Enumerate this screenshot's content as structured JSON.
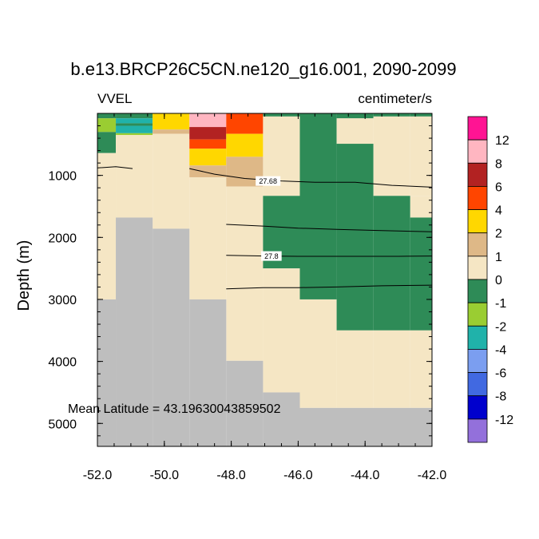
{
  "chart_data": {
    "type": "heatmap",
    "title": "b.e13.BRCP26C5CN.ne120_g16.001, 2090-2099",
    "left_string": "VVEL",
    "right_string": "centimeter/s",
    "xlabel": "",
    "ylabel": "Depth (m)",
    "xlim": [
      -52.0,
      -42.0
    ],
    "ylim": [
      0,
      5370
    ],
    "y_reversed": true,
    "x_ticks": [
      -52.0,
      -50.0,
      -48.0,
      -46.0,
      -44.0,
      -42.0
    ],
    "x_tick_labels": [
      "-52.0",
      "-50.0",
      "-48.0",
      "-46.0",
      "-44.0",
      "-42.0"
    ],
    "y_ticks": [
      1000,
      2000,
      3000,
      4000,
      5000
    ],
    "y_tick_labels": [
      "1000",
      "2000",
      "3000",
      "4000",
      "5000"
    ],
    "annotation": "Mean Latitude = 43.19630043859502",
    "missing_color": "#bebebe",
    "colorbar": {
      "labels": [
        "12",
        "8",
        "6",
        "4",
        "2",
        "1",
        "0",
        "-1",
        "-2",
        "-4",
        "-6",
        "-8",
        "-12"
      ],
      "colors_top_to_bottom": [
        "#ff1493",
        "#ffb6c1",
        "#b22222",
        "#ff4500",
        "#ffd700",
        "#deb887",
        "#f5e6c4",
        "#2e8b57",
        "#9acd32",
        "#20b2aa",
        "#7b9ef0",
        "#4169e1",
        "#0000cd",
        "#9370db"
      ]
    },
    "cells": [
      {
        "x0": -52.0,
        "x1": -51.45,
        "y0": 0,
        "y1": 80,
        "value": "0"
      },
      {
        "x0": -52.0,
        "x1": -51.45,
        "y0": 80,
        "y1": 300,
        "value": "-1"
      },
      {
        "x0": -52.0,
        "x1": -51.45,
        "y0": 300,
        "y1": 640,
        "value": "0"
      },
      {
        "x0": -52.0,
        "x1": -51.45,
        "y0": 640,
        "y1": 3000,
        "value": "1"
      },
      {
        "x0": -51.45,
        "x1": -50.35,
        "y0": 0,
        "y1": 80,
        "value": "0"
      },
      {
        "x0": -51.45,
        "x1": -50.35,
        "y0": 80,
        "y1": 160,
        "value": "-2"
      },
      {
        "x0": -51.45,
        "x1": -50.35,
        "y0": 160,
        "y1": 200,
        "value": "0"
      },
      {
        "x0": -51.45,
        "x1": -50.35,
        "y0": 200,
        "y1": 320,
        "value": "-2"
      },
      {
        "x0": -51.45,
        "x1": -50.35,
        "y0": 320,
        "y1": 350,
        "value": "-1"
      },
      {
        "x0": -51.45,
        "x1": -50.35,
        "y0": 350,
        "y1": 1680,
        "value": "1"
      },
      {
        "x0": -50.35,
        "x1": -49.25,
        "y0": 0,
        "y1": 260,
        "value": "4"
      },
      {
        "x0": -50.35,
        "x1": -49.25,
        "y0": 260,
        "y1": 330,
        "value": "2"
      },
      {
        "x0": -50.35,
        "x1": -49.25,
        "y0": 330,
        "y1": 1860,
        "value": "1"
      },
      {
        "x0": -49.25,
        "x1": -48.15,
        "y0": 0,
        "y1": 220,
        "value": "12"
      },
      {
        "x0": -49.25,
        "x1": -48.15,
        "y0": 220,
        "y1": 420,
        "value": "8"
      },
      {
        "x0": -49.25,
        "x1": -48.15,
        "y0": 420,
        "y1": 570,
        "value": "6"
      },
      {
        "x0": -49.25,
        "x1": -48.15,
        "y0": 570,
        "y1": 840,
        "value": "4"
      },
      {
        "x0": -49.25,
        "x1": -48.15,
        "y0": 840,
        "y1": 1030,
        "value": "2"
      },
      {
        "x0": -49.25,
        "x1": -48.15,
        "y0": 1030,
        "y1": 3000,
        "value": "1"
      },
      {
        "x0": -48.15,
        "x1": -47.05,
        "y0": 0,
        "y1": 330,
        "value": "6"
      },
      {
        "x0": -48.15,
        "x1": -47.05,
        "y0": 330,
        "y1": 700,
        "value": "4"
      },
      {
        "x0": -48.15,
        "x1": -47.05,
        "y0": 700,
        "y1": 1180,
        "value": "2"
      },
      {
        "x0": -48.15,
        "x1": -47.05,
        "y0": 1180,
        "y1": 3990,
        "value": "1"
      },
      {
        "x0": -47.05,
        "x1": -45.95,
        "y0": 0,
        "y1": 50,
        "value": "0"
      },
      {
        "x0": -47.05,
        "x1": -45.95,
        "y0": 50,
        "y1": 1330,
        "value": "1"
      },
      {
        "x0": -47.05,
        "x1": -45.95,
        "y0": 1330,
        "y1": 2500,
        "value": "0"
      },
      {
        "x0": -47.05,
        "x1": -45.95,
        "y0": 2500,
        "y1": 4500,
        "value": "1"
      },
      {
        "x0": -45.95,
        "x1": -44.85,
        "y0": 0,
        "y1": 3000,
        "value": "0"
      },
      {
        "x0": -45.95,
        "x1": -44.85,
        "y0": 3000,
        "y1": 4750,
        "value": "1"
      },
      {
        "x0": -44.85,
        "x1": -43.75,
        "y0": 0,
        "y1": 80,
        "value": "0"
      },
      {
        "x0": -44.85,
        "x1": -43.75,
        "y0": 80,
        "y1": 490,
        "value": "1"
      },
      {
        "x0": -44.85,
        "x1": -43.75,
        "y0": 490,
        "y1": 3500,
        "value": "0"
      },
      {
        "x0": -44.85,
        "x1": -43.75,
        "y0": 3500,
        "y1": 4750,
        "value": "1"
      },
      {
        "x0": -43.75,
        "x1": -42.65,
        "y0": 0,
        "y1": 50,
        "value": "0"
      },
      {
        "x0": -43.75,
        "x1": -42.65,
        "y0": 50,
        "y1": 1330,
        "value": "1"
      },
      {
        "x0": -43.75,
        "x1": -42.65,
        "y0": 1330,
        "y1": 3500,
        "value": "0"
      },
      {
        "x0": -43.75,
        "x1": -42.65,
        "y0": 3500,
        "y1": 4750,
        "value": "1"
      },
      {
        "x0": -42.65,
        "x1": -42.0,
        "y0": 0,
        "y1": 50,
        "value": "0"
      },
      {
        "x0": -42.65,
        "x1": -42.0,
        "y0": 50,
        "y1": 1330,
        "value": "1"
      },
      {
        "x0": -42.65,
        "x1": -42.0,
        "y0": 1330,
        "y1": 1680,
        "value": "1"
      },
      {
        "x0": -42.65,
        "x1": -42.0,
        "y0": 1680,
        "y1": 3500,
        "value": "0"
      },
      {
        "x0": -42.65,
        "x1": -42.0,
        "y0": 3500,
        "y1": 4750,
        "value": "1"
      }
    ],
    "bathymetry": [
      {
        "x0": -52.0,
        "x1": -51.45,
        "bottom": 3000
      },
      {
        "x0": -51.45,
        "x1": -50.35,
        "bottom": 1680
      },
      {
        "x0": -50.35,
        "x1": -49.25,
        "bottom": 1860
      },
      {
        "x0": -49.25,
        "x1": -48.15,
        "bottom": 3000
      },
      {
        "x0": -48.15,
        "x1": -47.05,
        "bottom": 3990
      },
      {
        "x0": -47.05,
        "x1": -45.95,
        "bottom": 4500
      },
      {
        "x0": -45.95,
        "x1": -42.0,
        "bottom": 4750
      }
    ],
    "contours": [
      {
        "label": "",
        "points": [
          [
            -52.0,
            880
          ],
          [
            -51.45,
            860
          ],
          [
            -50.95,
            890
          ]
        ]
      },
      {
        "label": "27.68",
        "label_at": [
          -46.9,
          1090
        ],
        "points": [
          [
            -49.25,
            890
          ],
          [
            -48.5,
            980
          ],
          [
            -47.6,
            1050
          ],
          [
            -46.5,
            1090
          ],
          [
            -45.5,
            1110
          ],
          [
            -44.3,
            1110
          ],
          [
            -43.2,
            1160
          ],
          [
            -42.0,
            1190
          ]
        ]
      },
      {
        "label": "",
        "points": [
          [
            -48.15,
            1790
          ],
          [
            -47.0,
            1820
          ],
          [
            -46.0,
            1850
          ],
          [
            -44.85,
            1870
          ],
          [
            -43.5,
            1890
          ],
          [
            -42.0,
            1910
          ]
        ]
      },
      {
        "label": "27.8",
        "label_at": [
          -46.8,
          2300
        ],
        "points": [
          [
            -48.15,
            2290
          ],
          [
            -47.0,
            2300
          ],
          [
            -46.0,
            2305
          ],
          [
            -44.5,
            2305
          ],
          [
            -43.0,
            2305
          ],
          [
            -42.0,
            2300
          ]
        ]
      },
      {
        "label": "",
        "points": [
          [
            -48.15,
            2830
          ],
          [
            -47.05,
            2810
          ],
          [
            -46.0,
            2810
          ],
          [
            -44.85,
            2800
          ],
          [
            -43.5,
            2780
          ],
          [
            -42.0,
            2770
          ]
        ]
      }
    ]
  }
}
